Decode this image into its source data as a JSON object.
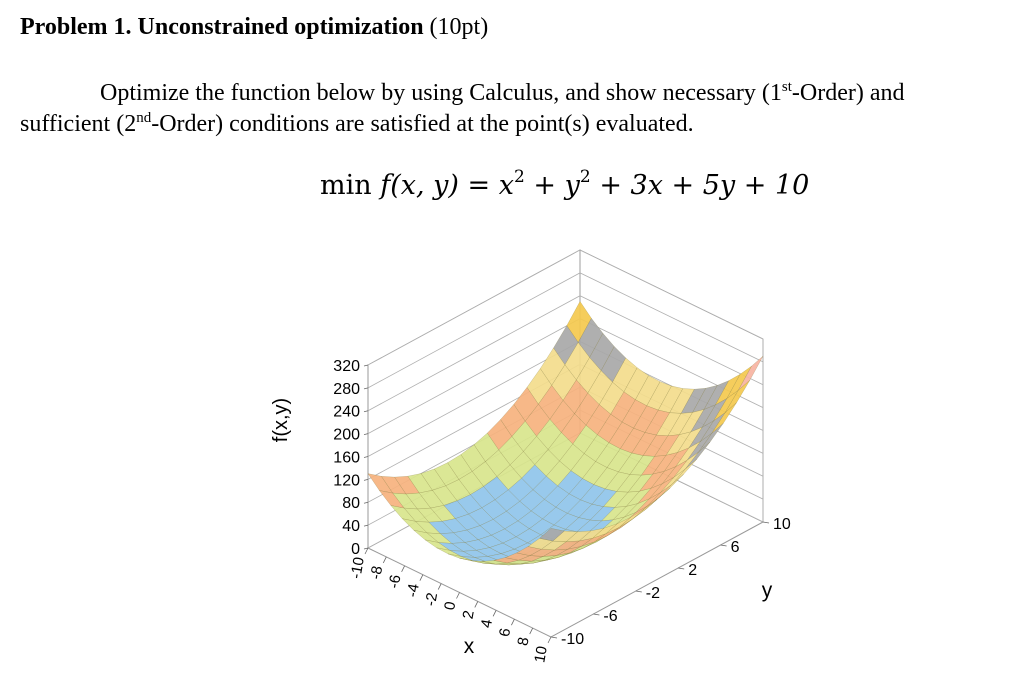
{
  "problem": {
    "title_bold": "Problem 1. Unconstrained optimization",
    "title_points": "(10pt)"
  },
  "paragraph": {
    "line1_a": "Optimize the function below by using Calculus, and show necessary (1",
    "line1_sup": "st",
    "line1_b": "-Order) and",
    "line2_a": "sufficient (2",
    "line2_sup": "nd",
    "line2_b": "-Order) conditions are satisfied at the point(s) evaluated."
  },
  "equation": {
    "op": "min",
    "f": "f",
    "args": "(x, y)",
    "eq": "=",
    "x": "x",
    "two_a": "2",
    "plus1": "+",
    "y": "y",
    "two_b": "2",
    "rest": "+ 3x + 5y + 10"
  },
  "chart_data": {
    "type": "surface",
    "function": "f(x,y) = x^2 + y^2 + 3x + 5y + 10",
    "zlabel": "f(x,y)",
    "xlabel": "x",
    "ylabel": "y",
    "z_ticks": [
      "0",
      "40",
      "80",
      "120",
      "160",
      "200",
      "240",
      "280",
      "320"
    ],
    "x_ticks": [
      "-10",
      "-8",
      "-6",
      "-4",
      "-2",
      "0",
      "2",
      "4",
      "6",
      "8",
      "10"
    ],
    "y_ticks": [
      "-10",
      "-6",
      "-2",
      "2",
      "6",
      "10"
    ],
    "zlim": [
      0,
      320
    ],
    "xlim": [
      -10,
      10
    ],
    "ylim": [
      -10,
      10
    ],
    "color_bands": [
      {
        "range": "0-40",
        "color": "#8fc4ea"
      },
      {
        "range": "40-80",
        "color": "#d8e58c"
      },
      {
        "range": "80-120",
        "color": "#f6b27e"
      },
      {
        "range": "120-160",
        "color": "#f3dc8c"
      },
      {
        "range": "160-200",
        "color": "#a8a8a8"
      },
      {
        "range": "200-240",
        "color": "#f4c94e"
      },
      {
        "range": "240-280",
        "color": "#f7b3a2"
      },
      {
        "range": "280-320",
        "color": "#d9736b"
      },
      {
        "range": "320+",
        "color": "#3f4a58"
      }
    ]
  }
}
